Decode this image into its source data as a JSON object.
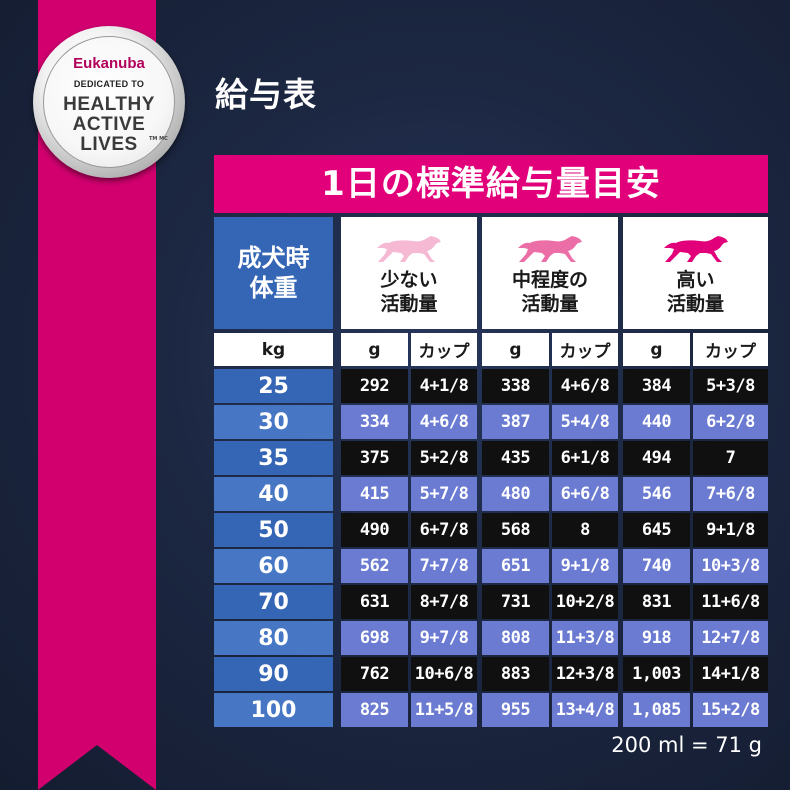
{
  "brand": {
    "name": "Eukanuba",
    "dedicated": "DEDICATED TO",
    "line1": "HEALTHY",
    "line2": "ACTIVE",
    "line3": "LIVES",
    "tm": "TM MC"
  },
  "heading": "給与表",
  "table_title": "1日の標準給与量目安",
  "weight_header": "成犬時体重",
  "weight_header_line1": "成犬時",
  "weight_header_line2": "体重",
  "activity_levels": [
    {
      "line1": "少ない",
      "line2": "活動量",
      "icon": "dog-running-icon",
      "color": "#f6b9d3"
    },
    {
      "line1": "中程度の",
      "line2": "活動量",
      "icon": "dog-running-icon",
      "color": "#ec6ea6"
    },
    {
      "line1": "高い",
      "line2": "活動量",
      "icon": "dog-running-icon",
      "color": "#e1007a"
    }
  ],
  "units": {
    "kg": "kg",
    "g": "g",
    "cup": "カップ"
  },
  "rows": [
    {
      "kg": "25",
      "low_g": "292",
      "low_cup": "4+1/8",
      "mid_g": "338",
      "mid_cup": "4+6/8",
      "high_g": "384",
      "high_cup": "5+3/8"
    },
    {
      "kg": "30",
      "low_g": "334",
      "low_cup": "4+6/8",
      "mid_g": "387",
      "mid_cup": "5+4/8",
      "high_g": "440",
      "high_cup": "6+2/8"
    },
    {
      "kg": "35",
      "low_g": "375",
      "low_cup": "5+2/8",
      "mid_g": "435",
      "mid_cup": "6+1/8",
      "high_g": "494",
      "high_cup": "7"
    },
    {
      "kg": "40",
      "low_g": "415",
      "low_cup": "5+7/8",
      "mid_g": "480",
      "mid_cup": "6+6/8",
      "high_g": "546",
      "high_cup": "7+6/8"
    },
    {
      "kg": "50",
      "low_g": "490",
      "low_cup": "6+7/8",
      "mid_g": "568",
      "mid_cup": "8",
      "high_g": "645",
      "high_cup": "9+1/8"
    },
    {
      "kg": "60",
      "low_g": "562",
      "low_cup": "7+7/8",
      "mid_g": "651",
      "mid_cup": "9+1/8",
      "high_g": "740",
      "high_cup": "10+3/8"
    },
    {
      "kg": "70",
      "low_g": "631",
      "low_cup": "8+7/8",
      "mid_g": "731",
      "mid_cup": "10+2/8",
      "high_g": "831",
      "high_cup": "11+6/8"
    },
    {
      "kg": "80",
      "low_g": "698",
      "low_cup": "9+7/8",
      "mid_g": "808",
      "mid_cup": "11+3/8",
      "high_g": "918",
      "high_cup": "12+7/8"
    },
    {
      "kg": "90",
      "low_g": "762",
      "low_cup": "10+6/8",
      "mid_g": "883",
      "mid_cup": "12+3/8",
      "high_g": "1,003",
      "high_cup": "14+1/8"
    },
    {
      "kg": "100",
      "low_g": "825",
      "low_cup": "11+5/8",
      "mid_g": "955",
      "mid_cup": "13+4/8",
      "high_g": "1,085",
      "high_cup": "15+2/8"
    }
  ],
  "footnote": "200 ml = 71 g",
  "colors": {
    "background": "#1c2742",
    "ribbon": "#d2006f",
    "title_bar": "#e1007a",
    "weight_column": "#3566b5",
    "row_dark": "#101010",
    "row_light": "#6a7bd1"
  }
}
